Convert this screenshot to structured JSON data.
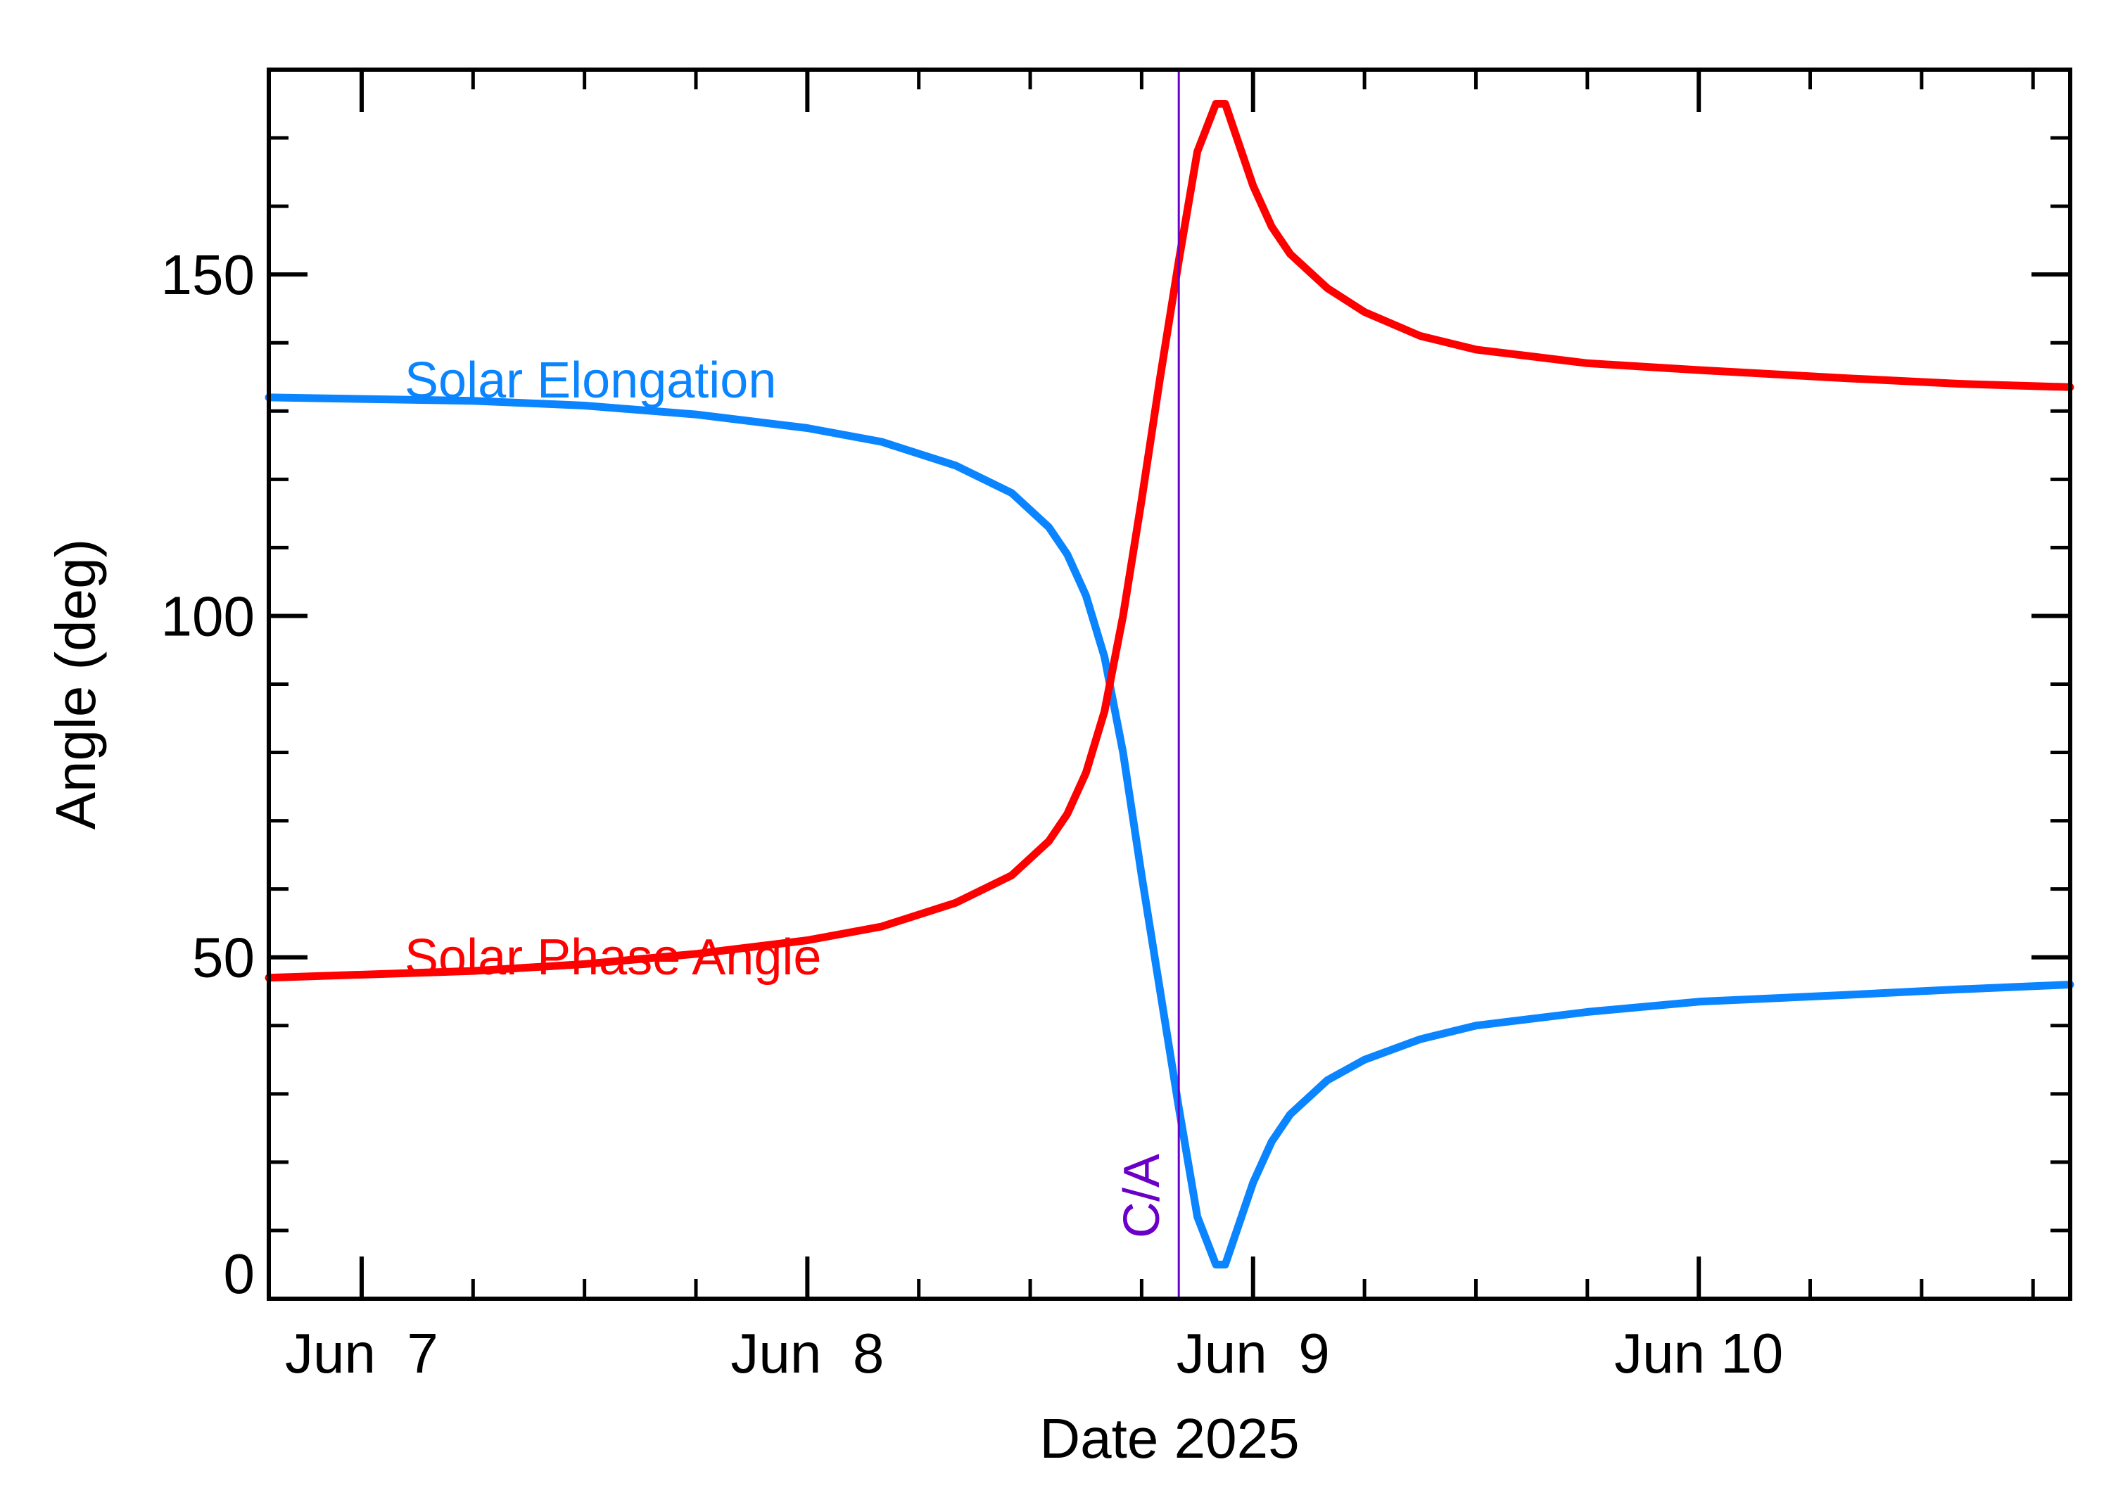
{
  "chart_data": {
    "type": "line",
    "xlabel": "Date 2025",
    "ylabel": "Angle (deg)",
    "xlim": [
      "2025-06-06 19:00",
      "2025-06-10 20:00"
    ],
    "ylim": [
      0,
      180
    ],
    "x_ticks": [
      {
        "date": "2025-06-07 00:00",
        "label": "Jun  7"
      },
      {
        "date": "2025-06-08 00:00",
        "label": "Jun  8"
      },
      {
        "date": "2025-06-09 00:00",
        "label": "Jun  9"
      },
      {
        "date": "2025-06-10 00:00",
        "label": "Jun 10"
      }
    ],
    "y_ticks": [
      {
        "value": 0,
        "label": "0"
      },
      {
        "value": 50,
        "label": "50"
      },
      {
        "value": 100,
        "label": "100"
      },
      {
        "value": 150,
        "label": "150"
      }
    ],
    "y_minor_step": 10,
    "x_minor_step_hours": 6,
    "grid": false,
    "closest_approach": {
      "date": "2025-06-08 20:00",
      "label": "C/A",
      "color": "#6a00c8"
    },
    "series": [
      {
        "name": "Solar Elongation",
        "color": "#0a84ff",
        "x": [
          "2025-06-06 19:00",
          "2025-06-07 06:00",
          "2025-06-07 12:00",
          "2025-06-07 18:00",
          "2025-06-08 00:00",
          "2025-06-08 04:00",
          "2025-06-08 08:00",
          "2025-06-08 11:00",
          "2025-06-08 13:00",
          "2025-06-08 14:00",
          "2025-06-08 15:00",
          "2025-06-08 16:00",
          "2025-06-08 17:00",
          "2025-06-08 18:00",
          "2025-06-08 19:00",
          "2025-06-08 20:00",
          "2025-06-08 21:00",
          "2025-06-08 22:00",
          "2025-06-08 22:30",
          "2025-06-08 23:00",
          "2025-06-09 00:00",
          "2025-06-09 01:00",
          "2025-06-09 02:00",
          "2025-06-09 04:00",
          "2025-06-09 06:00",
          "2025-06-09 09:00",
          "2025-06-09 12:00",
          "2025-06-09 18:00",
          "2025-06-10 00:00",
          "2025-06-10 08:00",
          "2025-06-10 14:00",
          "2025-06-10 20:00"
        ],
        "y": [
          132,
          131.5,
          130.8,
          129.5,
          127.5,
          125.5,
          122,
          118,
          113,
          109,
          103,
          94,
          80,
          62,
          45,
          28,
          12,
          5,
          5,
          9,
          17,
          23,
          27,
          32,
          35,
          38,
          40,
          42,
          43.5,
          44.5,
          45.3,
          46
        ]
      },
      {
        "name": "Solar Phase Angle",
        "color": "#ff0000",
        "x": [
          "2025-06-06 19:00",
          "2025-06-07 06:00",
          "2025-06-07 12:00",
          "2025-06-07 18:00",
          "2025-06-08 00:00",
          "2025-06-08 04:00",
          "2025-06-08 08:00",
          "2025-06-08 11:00",
          "2025-06-08 13:00",
          "2025-06-08 14:00",
          "2025-06-08 15:00",
          "2025-06-08 16:00",
          "2025-06-08 17:00",
          "2025-06-08 18:00",
          "2025-06-08 19:00",
          "2025-06-08 20:00",
          "2025-06-08 21:00",
          "2025-06-08 22:00",
          "2025-06-08 22:30",
          "2025-06-08 23:00",
          "2025-06-09 00:00",
          "2025-06-09 01:00",
          "2025-06-09 02:00",
          "2025-06-09 04:00",
          "2025-06-09 06:00",
          "2025-06-09 09:00",
          "2025-06-09 12:00",
          "2025-06-09 18:00",
          "2025-06-10 00:00",
          "2025-06-10 08:00",
          "2025-06-10 14:00",
          "2025-06-10 20:00"
        ],
        "y": [
          47,
          48,
          49,
          50.5,
          52.5,
          54.5,
          58,
          62,
          67,
          71,
          77,
          86,
          100,
          117,
          135,
          152,
          168,
          175,
          175,
          171,
          163,
          157,
          153,
          148,
          144.5,
          141,
          139,
          137,
          136,
          134.8,
          134,
          133.5
        ]
      }
    ]
  }
}
